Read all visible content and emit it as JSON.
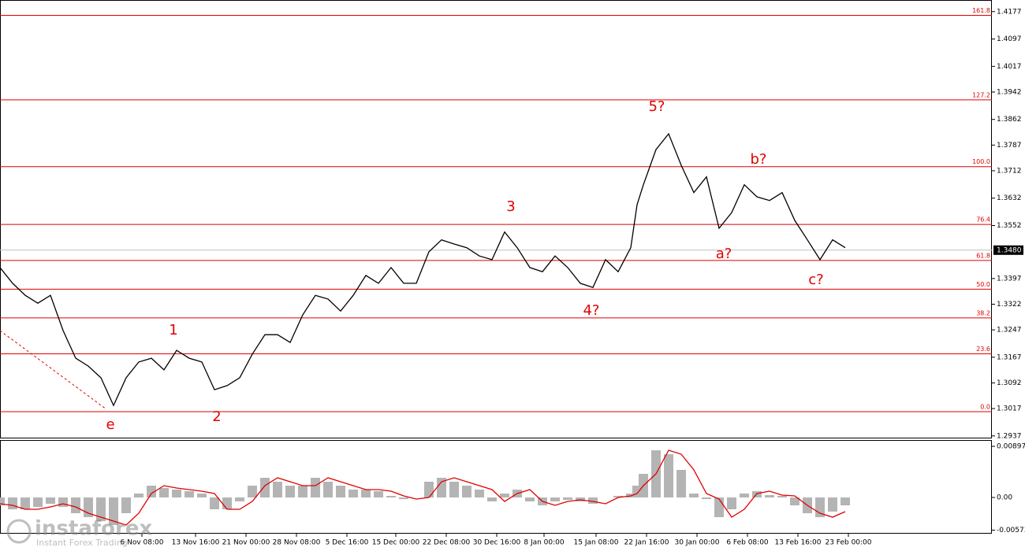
{
  "chart_data": [
    {
      "type": "line",
      "color": "#000000",
      "x": [
        0,
        4,
        8,
        12,
        16,
        20,
        24,
        28,
        32,
        36,
        40,
        44,
        48,
        52,
        56,
        60,
        64,
        68,
        72,
        76,
        80,
        84,
        88,
        92,
        96,
        100,
        104,
        108,
        112,
        116,
        120,
        124,
        128,
        132,
        136,
        140,
        144,
        148,
        152,
        156,
        160,
        164,
        168,
        172,
        176,
        180,
        184,
        188,
        192,
        196,
        200,
        202,
        204,
        208,
        212,
        216,
        220,
        224,
        228,
        232,
        236,
        240,
        244,
        248,
        252,
        256,
        260,
        264,
        268
      ],
      "values": [
        1.3429,
        1.3383,
        1.3348,
        1.3325,
        1.3348,
        1.3245,
        1.3164,
        1.3141,
        1.3107,
        1.3026,
        1.3107,
        1.3153,
        1.3164,
        1.313,
        1.3187,
        1.3164,
        1.3153,
        1.3072,
        1.3084,
        1.3107,
        1.3176,
        1.3233,
        1.3233,
        1.321,
        1.3291,
        1.3348,
        1.3337,
        1.3302,
        1.3348,
        1.3406,
        1.3383,
        1.3429,
        1.3383,
        1.3383,
        1.3475,
        1.351,
        1.3498,
        1.3487,
        1.3463,
        1.3452,
        1.3533,
        1.3487,
        1.3429,
        1.3417,
        1.3463,
        1.3429,
        1.3383,
        1.3371,
        1.3452,
        1.3417,
        1.3487,
        1.3613,
        1.3671,
        1.3774,
        1.382,
        1.3728,
        1.3648,
        1.3694,
        1.3544,
        1.359,
        1.3671,
        1.3636,
        1.3625,
        1.3648,
        1.3567,
        1.351,
        1.3452,
        1.351,
        1.3487
      ],
      "xlim": [
        0,
        314.5
      ],
      "xticks": [
        {
          "value": 45,
          "label": "6 Nov 08:00"
        },
        {
          "value": 62,
          "label": "13 Nov 16:00"
        },
        {
          "value": 78,
          "label": "21 Nov 00:00"
        },
        {
          "value": 94,
          "label": "28 Nov 08:00"
        },
        {
          "value": 110,
          "label": "5 Dec 16:00"
        },
        {
          "value": 125.5,
          "label": "15 Dec 00:00"
        },
        {
          "value": 141.5,
          "label": "22 Dec 08:00"
        },
        {
          "value": 157.5,
          "label": "30 Dec 16:00"
        },
        {
          "value": 172.5,
          "label": "8 Jan 00:00"
        },
        {
          "value": 189,
          "label": "15 Jan 08:00"
        },
        {
          "value": 205,
          "label": "22 Jan 16:00"
        },
        {
          "value": 221,
          "label": "30 Jan 00:00"
        },
        {
          "value": 237,
          "label": "6 Feb 08:00"
        },
        {
          "value": 253,
          "label": "13 Feb 16:00"
        },
        {
          "value": 269,
          "label": "23 Feb 00:00"
        }
      ],
      "ylim": [
        1.2932,
        1.4211
      ],
      "yticks": [
        1.4177,
        1.4097,
        1.4017,
        1.3942,
        1.3862,
        1.3787,
        1.3712,
        1.3632,
        1.3552,
        1.3397,
        1.3322,
        1.3247,
        1.3167,
        1.3092,
        1.3017,
        1.2937
      ],
      "current_price": {
        "value": 1.348,
        "label": "1.3480"
      },
      "levels_color": "#e00000",
      "levels": [
        {
          "name": "161.8",
          "value": 1.4166
        },
        {
          "name": "127.2",
          "value": 1.3919
        },
        {
          "name": "100.0",
          "value": 1.3724
        },
        {
          "name": "76.4",
          "value": 1.3555
        },
        {
          "name": "61.8",
          "value": 1.345
        },
        {
          "name": "50.0",
          "value": 1.3366
        },
        {
          "name": "38.2",
          "value": 1.3282
        },
        {
          "name": "23.6",
          "value": 1.3177
        },
        {
          "name": "0.0",
          "value": 1.3008
        }
      ],
      "annotations": [
        {
          "text": "e",
          "x": 35,
          "y": 1.2969
        },
        {
          "text": "1",
          "x": 55,
          "y": 1.3245
        },
        {
          "text": "2",
          "x": 68.75,
          "y": 1.2992
        },
        {
          "text": "3",
          "x": 162,
          "y": 1.3606
        },
        {
          "text": "4?",
          "x": 187.5,
          "y": 1.3302
        },
        {
          "text": "5?",
          "x": 208.25,
          "y": 1.3898
        },
        {
          "text": "a?",
          "x": 229.5,
          "y": 1.3468
        },
        {
          "text": "b?",
          "x": 240.5,
          "y": 1.3744
        },
        {
          "text": "c?",
          "x": 258.75,
          "y": 1.3392
        }
      ]
    },
    {
      "type": "bar",
      "color": "#b4b4b4",
      "x": [
        0,
        4,
        8,
        12,
        16,
        20,
        24,
        28,
        32,
        36,
        40,
        44,
        48,
        52,
        56,
        60,
        64,
        68,
        72,
        76,
        80,
        84,
        88,
        92,
        96,
        100,
        104,
        108,
        112,
        116,
        120,
        124,
        128,
        132,
        136,
        140,
        144,
        148,
        152,
        156,
        160,
        164,
        168,
        172,
        176,
        180,
        184,
        188,
        192,
        196,
        200,
        202,
        204,
        208,
        212,
        216,
        220,
        224,
        228,
        232,
        236,
        240,
        244,
        248,
        252,
        256,
        260,
        264,
        268
      ],
      "values": [
        -0.00138,
        -0.00207,
        -0.00207,
        -0.00166,
        -0.0011,
        -0.00166,
        -0.00276,
        -0.00345,
        -0.00414,
        -0.00483,
        -0.00276,
        0.00069,
        0.00207,
        0.00166,
        0.00138,
        0.0011,
        0.00069,
        -0.00207,
        -0.00207,
        -0.00069,
        0.00207,
        0.00345,
        0.00276,
        0.00207,
        0.00207,
        0.00345,
        0.00276,
        0.00207,
        0.00138,
        0.00138,
        0.0011,
        0.00028,
        -0.00028,
        0,
        0.00276,
        0.00345,
        0.00276,
        0.00207,
        0.00138,
        -0.00069,
        0.00069,
        0.00138,
        -0.00069,
        -0.00138,
        -0.00069,
        -0.00041,
        -0.00069,
        -0.0011,
        0,
        0.00028,
        0.00069,
        0.00207,
        0.00414,
        0.00828,
        0.00759,
        0.00483,
        0.00069,
        -0.00028,
        -0.00345,
        -0.00207,
        0.00069,
        0.0011,
        0.00041,
        0.00028,
        -0.00138,
        -0.00276,
        -0.00345,
        -0.00248,
        -0.00138
      ],
      "signal": {
        "color": "#e00000",
        "values": [
          -0.0011,
          -0.00138,
          -0.00207,
          -0.00207,
          -0.00166,
          -0.0011,
          -0.00166,
          -0.00276,
          -0.00345,
          -0.00414,
          -0.00483,
          -0.00276,
          0.00069,
          0.00207,
          0.00166,
          0.00138,
          0.0011,
          0.00069,
          -0.00207,
          -0.00207,
          -0.00069,
          0.00207,
          0.00345,
          0.00276,
          0.00207,
          0.00207,
          0.00345,
          0.00276,
          0.00207,
          0.00138,
          0.00138,
          0.0011,
          0.00028,
          -0.00028,
          0,
          0.00276,
          0.00345,
          0.00276,
          0.00207,
          0.00138,
          -0.00069,
          0.00069,
          0.00138,
          -0.00069,
          -0.00138,
          -0.00069,
          -0.00041,
          -0.00069,
          -0.0011,
          0,
          0.00028,
          0.00069,
          0.00207,
          0.00414,
          0.00828,
          0.00759,
          0.00483,
          0.00069,
          -0.00028,
          -0.00345,
          -0.00207,
          0.00069,
          0.0011,
          0.00041,
          0.00028,
          -0.00138,
          -0.00276,
          -0.00345,
          -0.00248
        ]
      },
      "xlim": [
        0,
        314.5
      ],
      "ylim": [
        -0.00635,
        0.00994
      ],
      "yticks": [
        0.00897,
        {
          "value": 0,
          "label": "0.00"
        },
        -0.00573
      ]
    }
  ],
  "watermark": {
    "brand": "instaforex",
    "tagline": "Instant Forex Trading"
  }
}
